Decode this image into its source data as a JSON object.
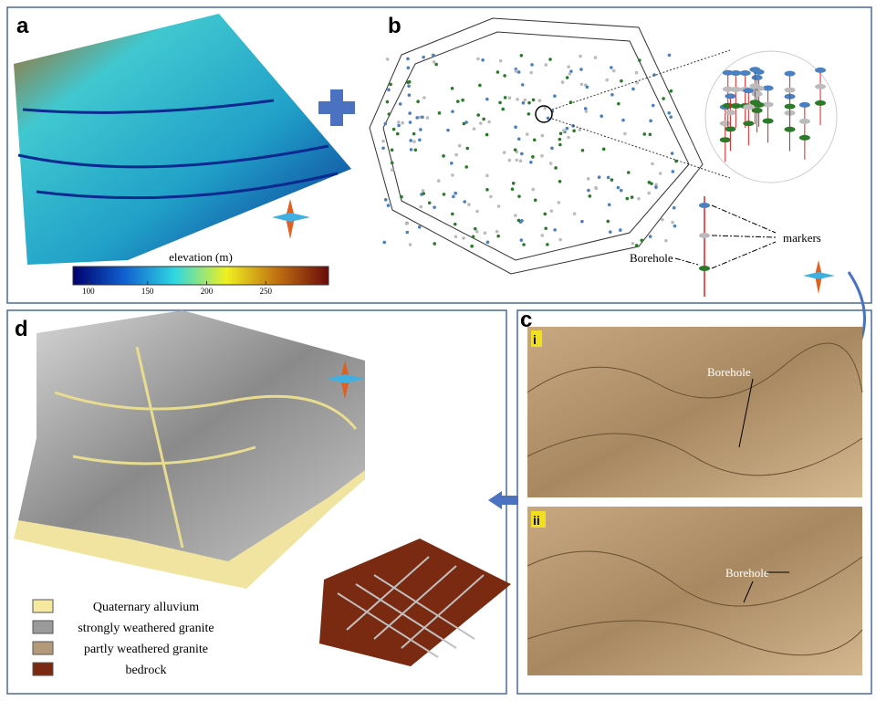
{
  "panels": {
    "a": "a",
    "b": "b",
    "c": "c",
    "d": "d"
  },
  "colorbar": {
    "label": "elevation (m)",
    "lim": [
      87,
      303
    ],
    "ticks": [
      100,
      150,
      200,
      250
    ]
  },
  "panel_b": {
    "borehole": "Borehole",
    "markers": "markers"
  },
  "panel_c": {
    "sub1": {
      "label": "i",
      "borehole": "Borehole"
    },
    "sub2": {
      "label": "ii",
      "borehole": "Borehole"
    }
  },
  "legend": [
    "Quaternary alluvium",
    "strongly weathered granite",
    "partly weathered granite",
    "bedrock"
  ],
  "legend_colors": [
    "#f5e9a0",
    "#9a9a9a",
    "#b59a7a",
    "#7a2a10"
  ]
}
